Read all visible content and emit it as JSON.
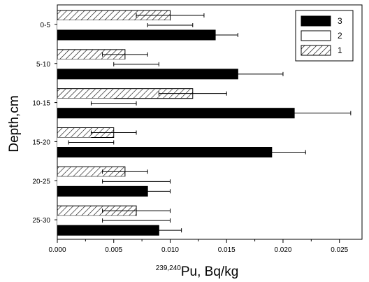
{
  "chart_data": {
    "type": "bar",
    "orientation": "horizontal",
    "categories": [
      "0-5",
      "5-10",
      "10-15",
      "15-20",
      "20-25",
      "25-30"
    ],
    "series": [
      {
        "name": "1",
        "pattern": "hatched",
        "values": [
          0.01,
          0.006,
          0.012,
          0.005,
          0.006,
          0.007
        ],
        "errors": [
          0.003,
          0.002,
          0.003,
          0.002,
          0.002,
          0.003
        ]
      },
      {
        "name": "2",
        "pattern": "white",
        "values": [
          0.01,
          0.007,
          0.005,
          0.003,
          0.007,
          0.007
        ],
        "errors": [
          0.002,
          0.002,
          0.002,
          0.002,
          0.003,
          0.003
        ]
      },
      {
        "name": "3",
        "pattern": "black",
        "values": [
          0.014,
          0.016,
          0.021,
          0.019,
          0.008,
          0.009
        ],
        "errors": [
          0.002,
          0.004,
          0.005,
          0.003,
          0.002,
          0.002
        ]
      }
    ],
    "xlabel_superscript": "239,240",
    "xlabel": "Pu, Bq/kg",
    "ylabel": "Depth,cm",
    "xlim": [
      0.0,
      0.027
    ],
    "xticks": [
      "0.000",
      "0.005",
      "0.010",
      "0.015",
      "0.020",
      "0.025"
    ],
    "legend": {
      "position": "top-right",
      "entries": [
        "3",
        "2",
        "1"
      ]
    },
    "grid": false
  },
  "colors": {
    "bar_fill_dark": "#000000",
    "bar_fill_light": "#ffffff",
    "axis": "#000000"
  }
}
